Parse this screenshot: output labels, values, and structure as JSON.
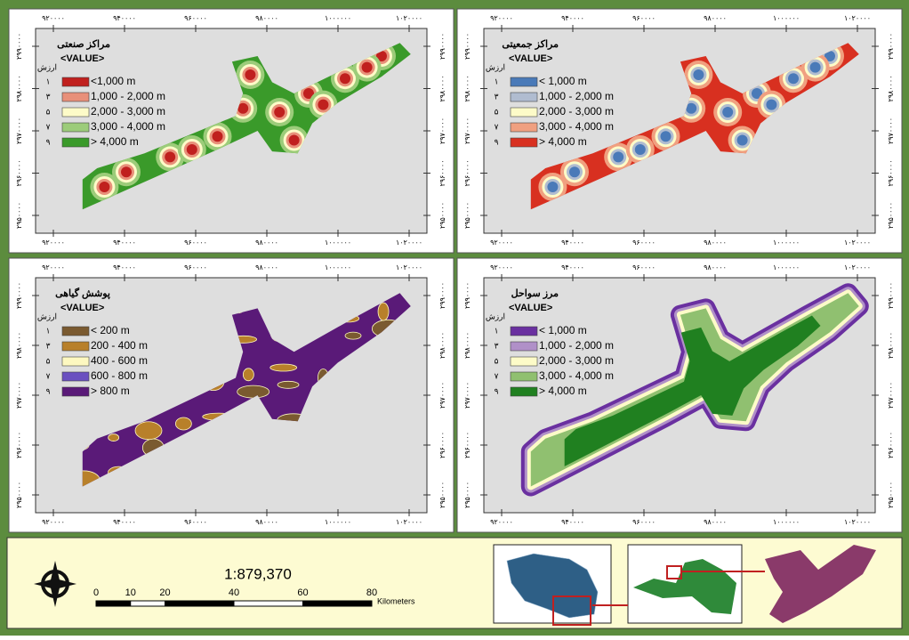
{
  "x_ticks": [
    "۹۲۰۰۰۰",
    "۹۴۰۰۰۰",
    "۹۶۰۰۰۰",
    "۹۸۰۰۰۰",
    "۱۰۰۰۰۰۰",
    "۱۰۲۰۰۰۰"
  ],
  "y_ticks": [
    "۲۹۹۰۰۰۰",
    "۲۹۸۰۰۰۰",
    "۲۹۷۰۰۰۰",
    "۲۹۶۰۰۰۰",
    "۲۹۵۰۰۰۰"
  ],
  "panels": [
    {
      "title": "مراکز صنعتی",
      "field": "<VALUE>",
      "header": "ارزش",
      "style": "blobs",
      "base": "#3a9a2a",
      "spot": "#c0201e",
      "legend": [
        {
          "value": "۱",
          "label": "<1,000 m",
          "color": "#c0201e"
        },
        {
          "value": "۳",
          "label": "1,000 - 2,000 m",
          "color": "#e8907a"
        },
        {
          "value": "۵",
          "label": "2,000 - 3,000 m",
          "color": "#fdfbc8"
        },
        {
          "value": "۷",
          "label": "3,000 - 4,000 m",
          "color": "#9ccc7a"
        },
        {
          "value": "۹",
          "label": "> 4,000 m",
          "color": "#3a9a2a"
        }
      ]
    },
    {
      "title": "مراکز جمعیتی",
      "field": "<VALUE>",
      "header": "ارزش",
      "style": "blobs",
      "base": "#d83020",
      "spot": "#4a7ab8",
      "legend": [
        {
          "value": "۱",
          "label": "< 1,000 m",
          "color": "#4a7ab8"
        },
        {
          "value": "۳",
          "label": "1,000 - 2,000 m",
          "color": "#b0bcd0"
        },
        {
          "value": "۵",
          "label": "2,000 - 3,000 m",
          "color": "#fdfbc8"
        },
        {
          "value": "۷",
          "label": "3,000 - 4,000 m",
          "color": "#f0a080"
        },
        {
          "value": "۹",
          "label": "> 4,000 m",
          "color": "#d83020"
        }
      ]
    },
    {
      "title": "پوشش گیاهی",
      "field": "<VALUE>",
      "header": "ارزش",
      "style": "patches",
      "base": "#5a1a78",
      "spot": "#b8802a",
      "legend": [
        {
          "value": "۱",
          "label": "< 200 m",
          "color": "#7a5a30"
        },
        {
          "value": "۳",
          "label": "200 - 400 m",
          "color": "#b8802a"
        },
        {
          "value": "۵",
          "label": "400 - 600 m",
          "color": "#fdf8c0"
        },
        {
          "value": "۷",
          "label": "600 - 800 m",
          "color": "#6a50c0"
        },
        {
          "value": "۹",
          "label": "> 800 m",
          "color": "#5a1a78"
        }
      ]
    },
    {
      "title": "مرز سواحل",
      "field": "<VALUE>",
      "header": "ارزش",
      "style": "rings",
      "base": "#208020",
      "spot": "#6a30a0",
      "legend": [
        {
          "value": "۱",
          "label": "< 1,000 m",
          "color": "#6a30a0"
        },
        {
          "value": "۳",
          "label": "1,000 - 2,000 m",
          "color": "#b090c8"
        },
        {
          "value": "۵",
          "label": "2,000 - 3,000 m",
          "color": "#fdfbc8"
        },
        {
          "value": "۷",
          "label": "3,000 - 4,000 m",
          "color": "#90c070"
        },
        {
          "value": "۹",
          "label": "> 4,000 m",
          "color": "#208020"
        }
      ]
    }
  ],
  "footer": {
    "scale_ratio": "1:879,370",
    "scale_bar": [
      0,
      10,
      20,
      40,
      60,
      80
    ],
    "unit": "Kilometers"
  }
}
